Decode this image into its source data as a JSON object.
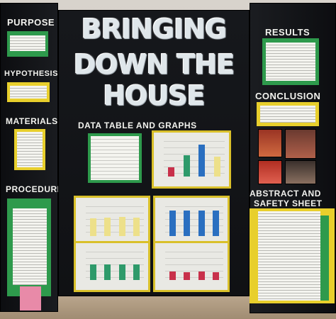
{
  "board": {
    "title_line1": "BRINGING",
    "title_line2": "DOWN THE",
    "title_line3": "HOUSE",
    "subtitle": "DATA TABLE AND GRAPHS",
    "left_headers": [
      "PURPOSE",
      "HYPOTHESIS",
      "MATERIALS",
      "PROCEDURE"
    ],
    "right_headers": [
      "RESULTS",
      "CONCLUSION",
      "ABSTRACT AND",
      "SAFETY SHEET"
    ]
  },
  "colors": {
    "board": "#111316",
    "green_mat": "#2e9a4c",
    "yellow_mat": "#e8cf2c",
    "bar_red": "#c8304a",
    "bar_green": "#2e9a6a",
    "bar_blue": "#2a6fc0",
    "bar_yellow": "#ede08a"
  },
  "charts": [
    {
      "id": "top",
      "bar_levels": [
        0.25,
        0.6,
        0.9,
        0.55
      ],
      "bar_colors": [
        "#c8304a",
        "#2e9a6a",
        "#2a6fc0",
        "#ede08a"
      ]
    },
    {
      "id": "mid-left",
      "bar_levels": [
        0.6,
        0.62,
        0.64,
        0.62
      ],
      "bar_colors": [
        "#ede08a",
        "#ede08a",
        "#ede08a",
        "#ede08a"
      ]
    },
    {
      "id": "mid-right",
      "bar_levels": [
        0.85,
        0.85,
        0.85,
        0.85
      ],
      "bar_colors": [
        "#2a6fc0",
        "#2a6fc0",
        "#2a6fc0",
        "#2a6fc0"
      ]
    },
    {
      "id": "bot-left",
      "bar_levels": [
        0.55,
        0.55,
        0.55,
        0.55
      ],
      "bar_colors": [
        "#2e9a6a",
        "#2e9a6a",
        "#2e9a6a",
        "#2e9a6a"
      ]
    },
    {
      "id": "bot-right",
      "bar_levels": [
        0.3,
        0.28,
        0.3,
        0.28
      ],
      "bar_colors": [
        "#c8304a",
        "#c8304a",
        "#c8304a",
        "#c8304a"
      ]
    }
  ]
}
